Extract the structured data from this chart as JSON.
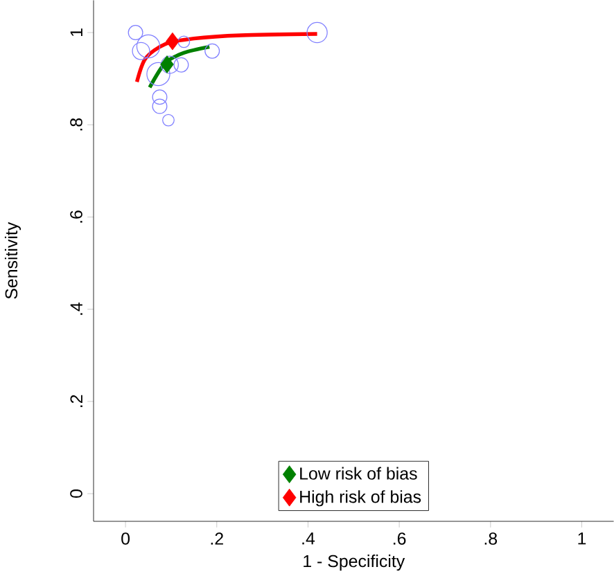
{
  "chart_data": {
    "type": "bubble",
    "xlabel": "1 - Specificity",
    "ylabel": "Sensitivity",
    "xlim": [
      -0.07,
      1.07
    ],
    "ylim": [
      -0.06,
      1.07
    ],
    "xticks": [
      0,
      {
        "value": 0.2,
        "label": ".2"
      },
      {
        "value": 0.4,
        "label": ".4"
      },
      {
        "value": 0.6,
        "label": ".6"
      },
      {
        "value": 0.8,
        "label": ".8"
      },
      1
    ],
    "yticks": [
      0,
      {
        "value": 0.2,
        "label": ".2"
      },
      {
        "value": 0.4,
        "label": ".4"
      },
      {
        "value": 0.6,
        "label": ".6"
      },
      {
        "value": 0.8,
        "label": ".8"
      },
      1
    ],
    "legend": "bottom",
    "grid": false,
    "series": [
      {
        "color": "#8080ff",
        "x": [
          0.022,
          0.05,
          0.128,
          0.19,
          0.42,
          0.072,
          0.122,
          0.075,
          0.075,
          0.094,
          0.034,
          0.097
        ],
        "values": [
          1.0,
          0.97,
          0.98,
          0.96,
          1.0,
          0.91,
          0.93,
          0.86,
          0.84,
          0.81,
          0.96,
          0.93
        ],
        "sizes": [
          0.39,
          1,
          0.25,
          0.39,
          0.77,
          1,
          0.39,
          0.39,
          0.39,
          0.25,
          0.56,
          0.56
        ]
      },
      {
        "type": "line",
        "color": "#ff0000",
        "x": [
          0.025,
          0.044,
          0.087,
          0.15,
          0.253,
          0.42
        ],
        "values": [
          0.893,
          0.944,
          0.975,
          0.987,
          0.994,
          0.997
        ]
      },
      {
        "type": "line",
        "color": "#008000",
        "x": [
          0.053,
          0.087,
          0.128,
          0.184
        ],
        "values": [
          0.881,
          0.934,
          0.956,
          0.969
        ]
      },
      {
        "type": "scatter",
        "name": "Low risk of bias",
        "color": "#008000",
        "marker": "diamond",
        "x": [
          0.091
        ],
        "values": [
          0.931
        ]
      },
      {
        "type": "scatter",
        "name": "High risk of bias",
        "color": "#ff0000",
        "marker": "diamond",
        "x": [
          0.103
        ],
        "values": [
          0.981
        ]
      }
    ]
  }
}
